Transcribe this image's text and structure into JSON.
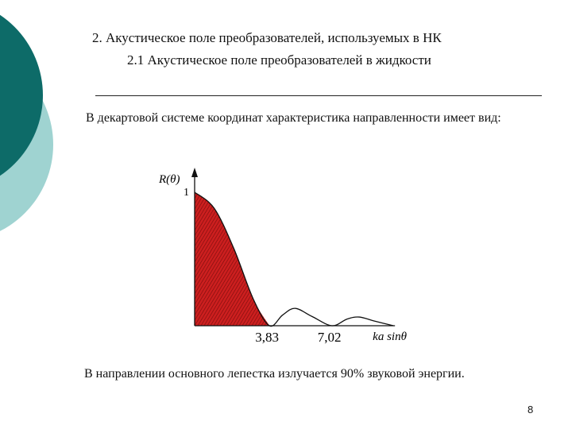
{
  "slide": {
    "heading": "2. Акустическое поле преобразователей, используемых в НК",
    "subheading": "2.1 Акустическое поле преобразователей в жидкости",
    "intro_text": "В декартовой системе координат характеристика направленности имеет вид:",
    "conclusion_text": "В направлении основного лепестка излучается 90% звуковой энергии.",
    "page_number": "8"
  },
  "theme": {
    "dark_teal": "#0d6b68",
    "light_teal": "#9fd3d1",
    "lobe_fill": "#cc1f1f",
    "line": "#111111"
  },
  "chart_data": {
    "type": "line",
    "ylabel": "R(θ)",
    "xlabel": "ka sinθ",
    "y_tick_label": "1",
    "x_tick_labels": [
      "3,83",
      "7,02"
    ],
    "zeros": [
      3.83,
      7.02
    ],
    "ylim": [
      0,
      1
    ],
    "series": [
      {
        "values_description_free": true,
        "x": [
          0,
          1,
          2,
          3,
          3.83,
          4.5,
          5.14,
          6.0,
          7.02,
          7.8,
          8.42,
          9.2,
          10.17
        ],
        "y": [
          1.0,
          0.88,
          0.58,
          0.2,
          0.0,
          0.08,
          0.13,
          0.07,
          0.0,
          0.05,
          0.065,
          0.035,
          0.0
        ]
      }
    ],
    "shaded_main_lobe": true
  }
}
